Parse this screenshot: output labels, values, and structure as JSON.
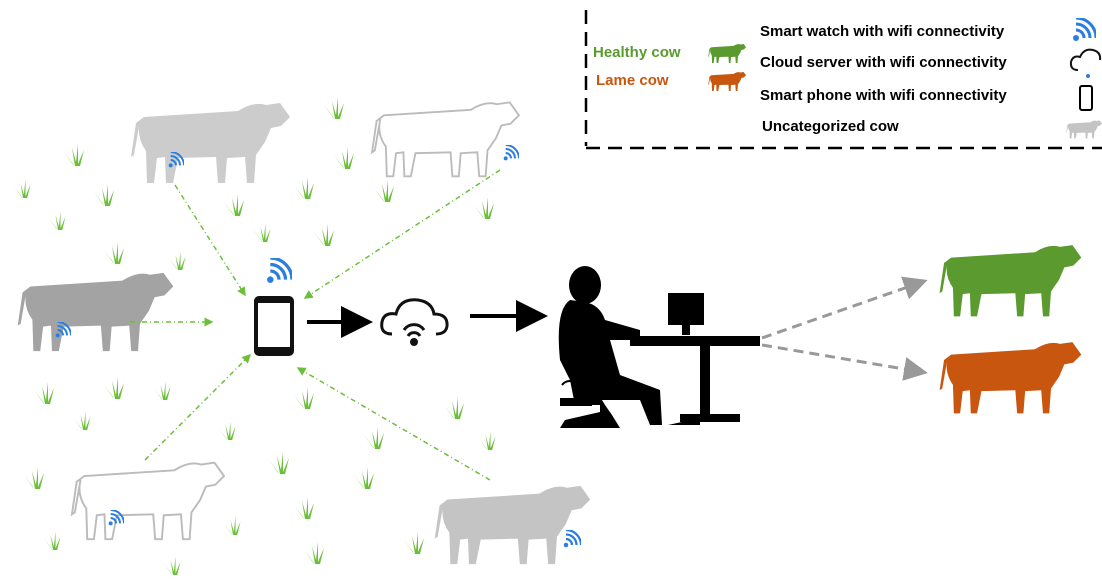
{
  "legend": {
    "cow_status": [
      {
        "label": "Healthy cow"
      },
      {
        "label": "Lame cow"
      }
    ],
    "devices": [
      "Smart watch with wifi connectivity",
      "Cloud server with wifi connectivity",
      "Smart phone with wifi connectivity",
      "Uncategorized cow"
    ]
  }
}
